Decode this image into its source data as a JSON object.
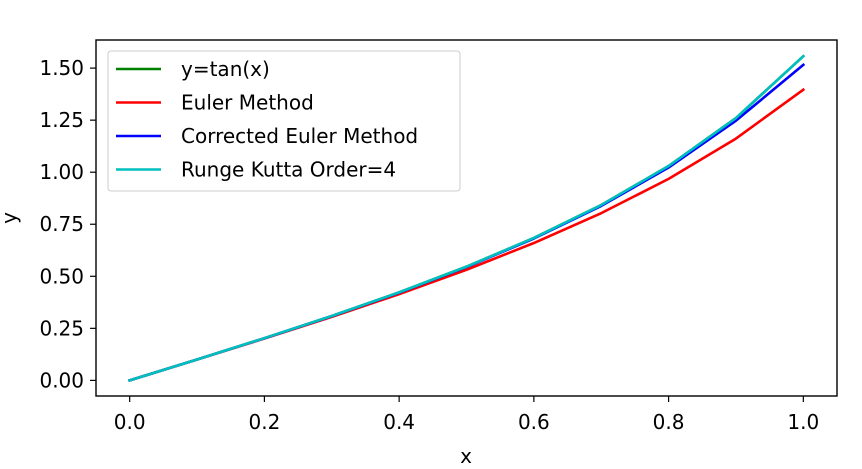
{
  "chart_data": {
    "type": "line",
    "xlabel": "x",
    "ylabel": "y",
    "xlim": [
      -0.05,
      1.05
    ],
    "ylim": [
      -0.075,
      1.635
    ],
    "xticks": [
      0.0,
      0.2,
      0.4,
      0.6,
      0.8,
      1.0
    ],
    "xtick_labels": [
      "0.0",
      "0.2",
      "0.4",
      "0.6",
      "0.8",
      "1.0"
    ],
    "yticks": [
      0.0,
      0.25,
      0.5,
      0.75,
      1.0,
      1.25,
      1.5
    ],
    "ytick_labels": [
      "0.00",
      "0.25",
      "0.50",
      "0.75",
      "1.00",
      "1.25",
      "1.50"
    ],
    "grid": false,
    "legend_position": "top-left",
    "x": [
      0.0,
      0.1,
      0.2,
      0.3,
      0.4,
      0.5,
      0.6,
      0.7,
      0.8,
      0.9,
      1.0
    ],
    "series": [
      {
        "name": "y=tan(x)",
        "color": "#008000",
        "values": [
          0.0,
          0.1003,
          0.2027,
          0.3093,
          0.4228,
          0.5463,
          0.6841,
          0.8423,
          1.0296,
          1.2602,
          1.5574
        ]
      },
      {
        "name": "Euler Method",
        "color": "#ff0000",
        "values": [
          0.0,
          0.1,
          0.201,
          0.305,
          0.4143,
          0.5315,
          0.6598,
          0.8033,
          0.9678,
          1.1615,
          1.3964
        ]
      },
      {
        "name": "Corrected Euler Method",
        "color": "#0000ff",
        "values": [
          0.0,
          0.1005,
          0.2025,
          0.3086,
          0.4216,
          0.5446,
          0.6815,
          0.8381,
          1.0224,
          1.2475,
          1.5155
        ]
      },
      {
        "name": "Runge Kutta Order=4",
        "color": "#00bfbf",
        "values": [
          0.0,
          0.1003,
          0.2027,
          0.3093,
          0.4228,
          0.5463,
          0.6841,
          0.8423,
          1.0296,
          1.2602,
          1.5574
        ]
      }
    ]
  }
}
